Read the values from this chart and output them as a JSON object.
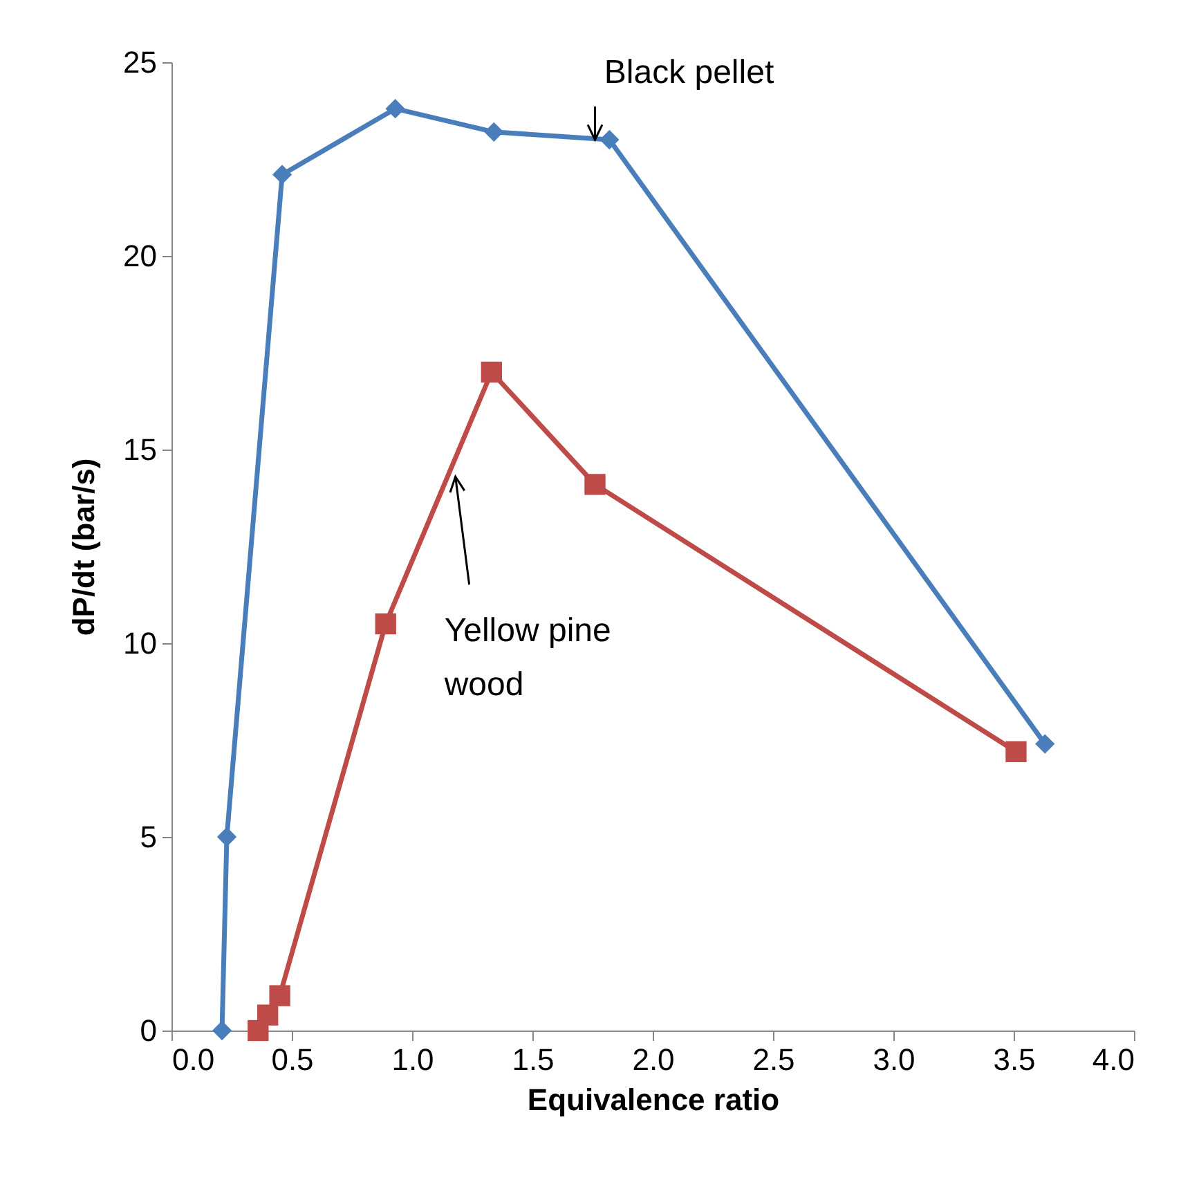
{
  "chart_data": {
    "type": "line",
    "xlabel": "Equivalence ratio",
    "ylabel": "dP/dt (bar/s)",
    "xlim": [
      0,
      4
    ],
    "xticks": [
      {
        "value": 0,
        "label": "0.0"
      },
      {
        "value": 0.5,
        "label": "0.5"
      },
      {
        "value": 1,
        "label": "1.0"
      },
      {
        "value": 1.5,
        "label": "1.5"
      },
      {
        "value": 2,
        "label": "2.0"
      },
      {
        "value": 2.5,
        "label": "2.5"
      },
      {
        "value": 3,
        "label": "3.0"
      },
      {
        "value": 3.5,
        "label": "3.5"
      },
      {
        "value": 4,
        "label": "4.0"
      }
    ],
    "ylim": [
      0,
      25
    ],
    "yticks": [
      0,
      5,
      10,
      15,
      20,
      25
    ],
    "grid": false,
    "series": [
      {
        "color": "#4a7ebb",
        "marker": "diamond",
        "x": [
          0.21,
          0.23,
          0.46,
          0.93,
          1.34,
          1.82,
          3.63
        ],
        "values": [
          0,
          5.0,
          22.1,
          23.8,
          23.2,
          23.0,
          7.4
        ]
      },
      {
        "color": "#be4b48",
        "marker": "square",
        "x": [
          0.36,
          0.4,
          0.45,
          0.89,
          1.33,
          1.76,
          3.51
        ],
        "values": [
          0,
          0.4,
          0.9,
          10.5,
          17.0,
          14.1,
          7.2
        ]
      }
    ],
    "annotations": [
      {
        "text": "Black pellet",
        "x": 1.76,
        "y": 23.0
      },
      {
        "text": "Yellow pine wood",
        "x": 1.18,
        "y": 14.3
      }
    ]
  }
}
